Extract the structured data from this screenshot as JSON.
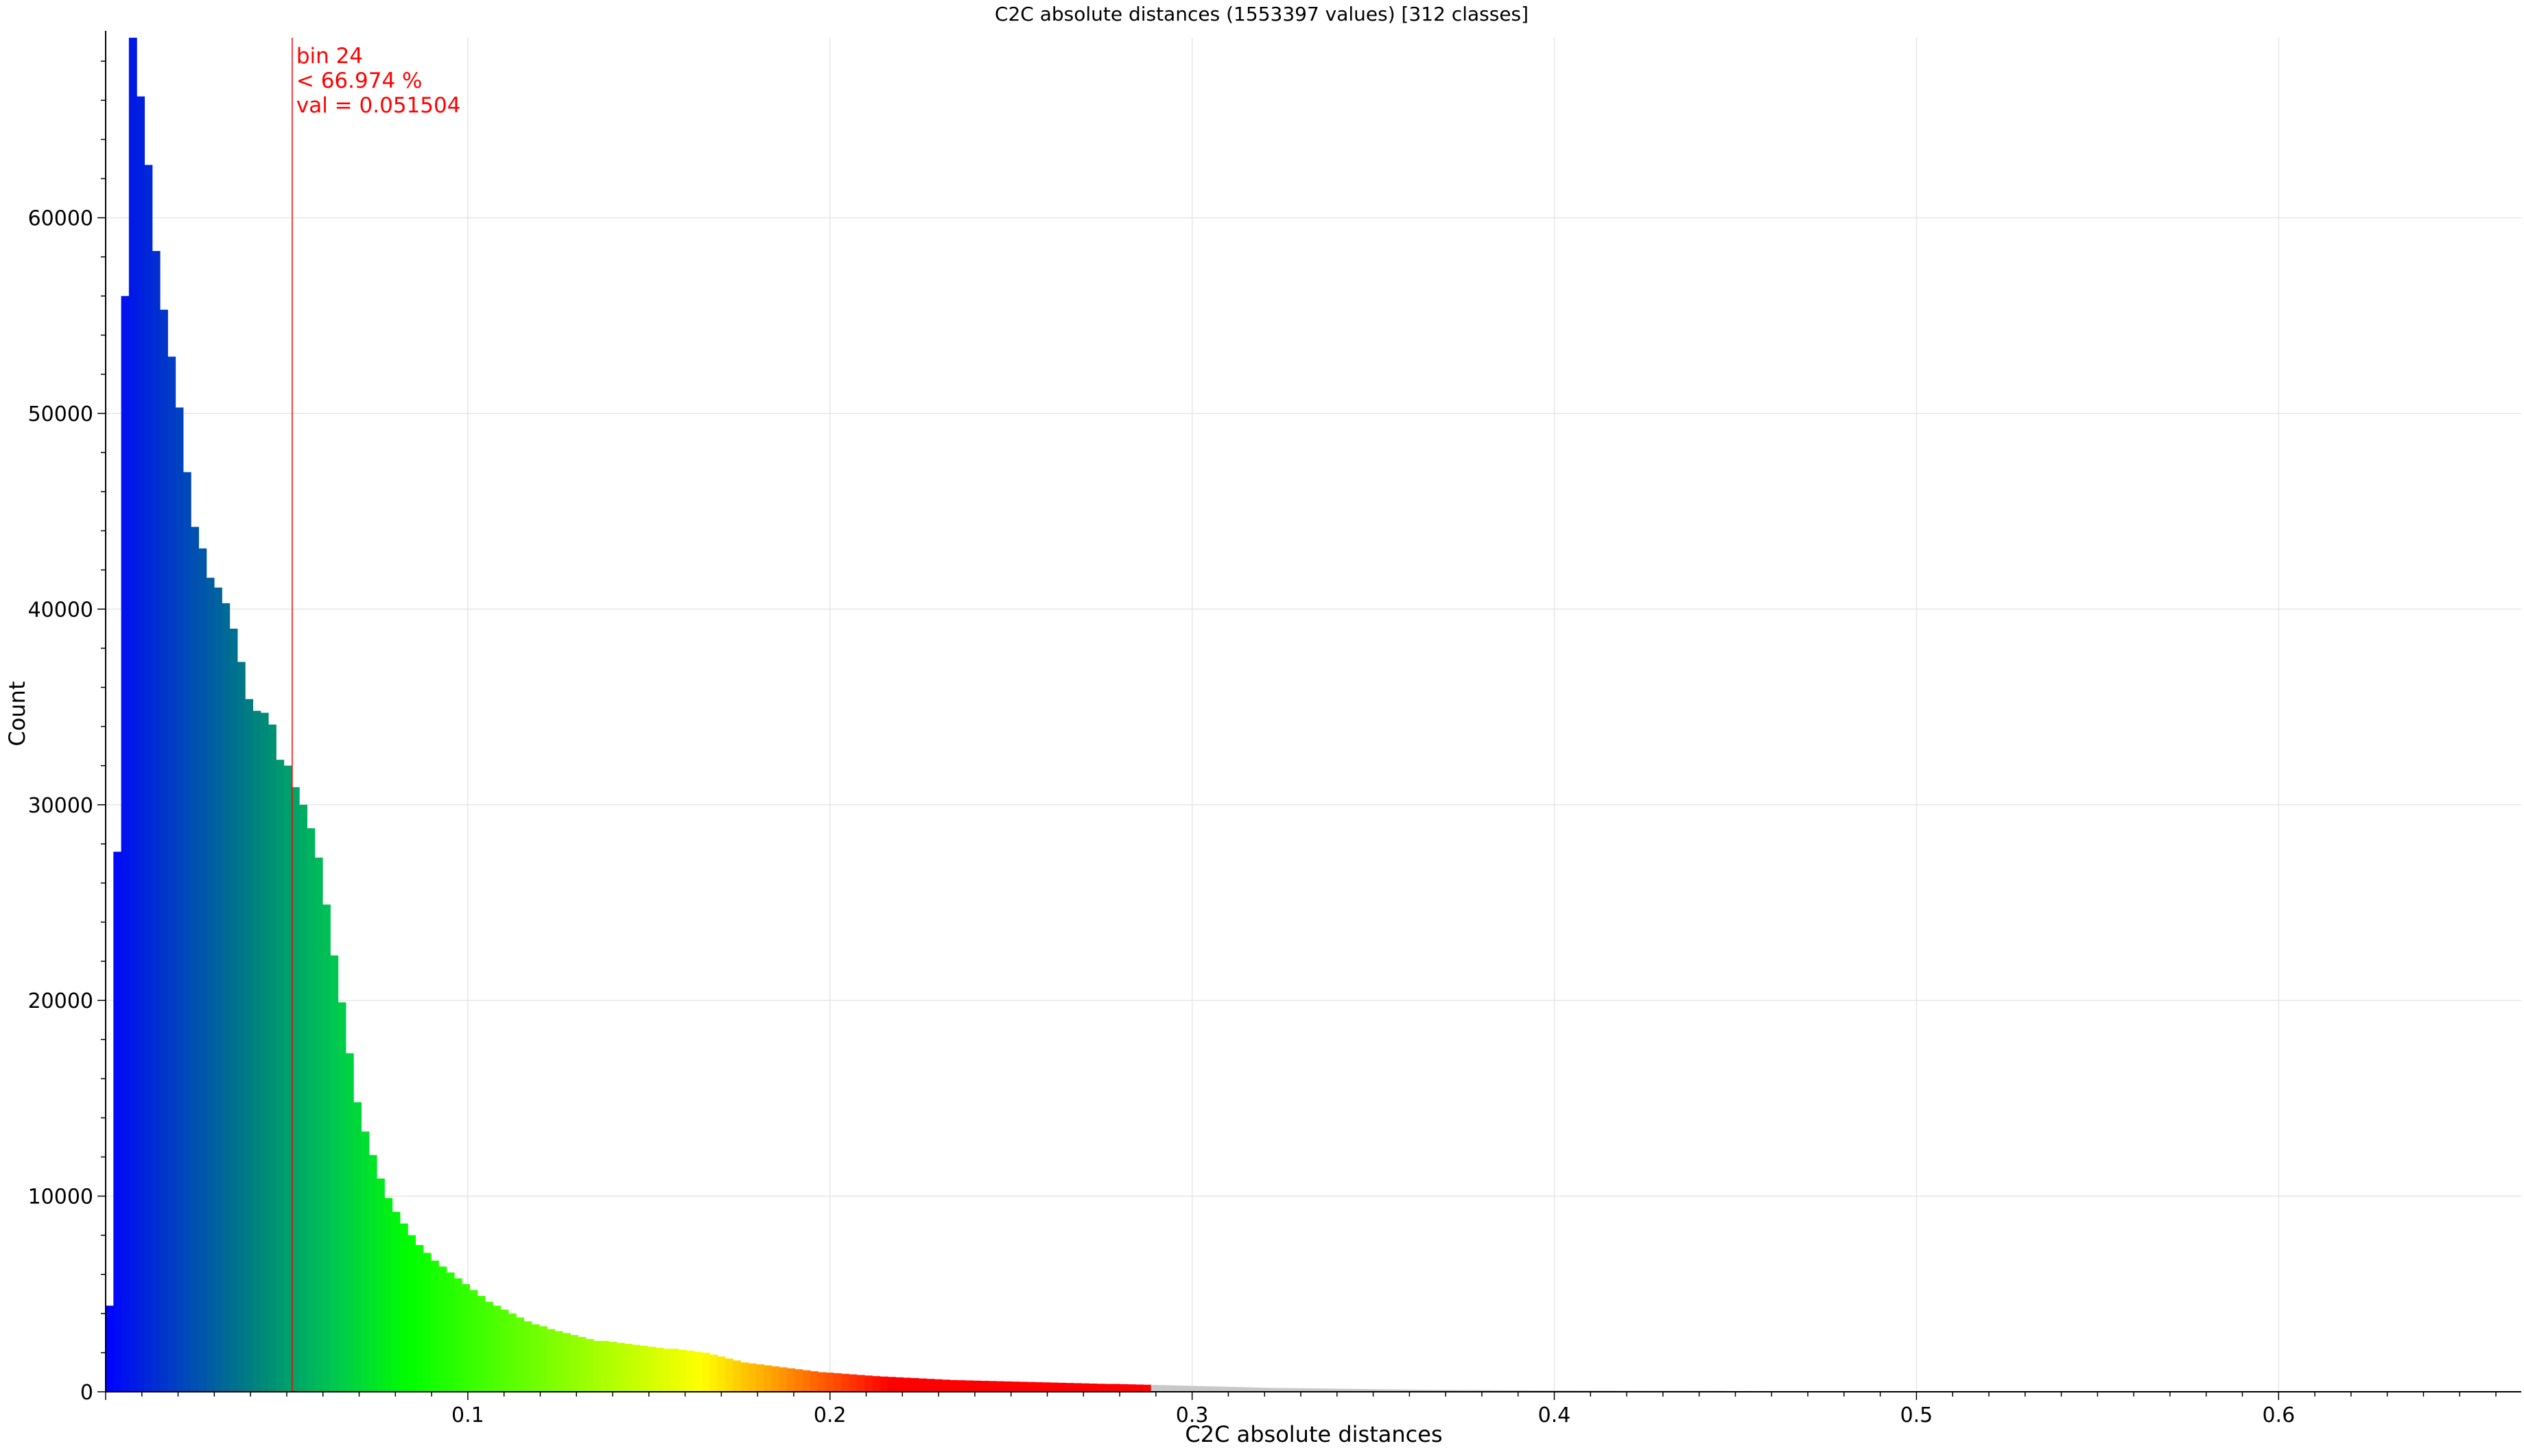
{
  "chart_data": {
    "type": "bar",
    "title": "C2C absolute distances (1553397 values)  [312 classes]",
    "xlabel": "C2C absolute distances",
    "ylabel": "Count",
    "xlim": [
      0,
      0.667
    ],
    "ylim": [
      0,
      69200
    ],
    "grid": true,
    "x_ticks": [
      0.1,
      0.2,
      0.3,
      0.4,
      0.5,
      0.6
    ],
    "x_tick_labels": [
      "0.1",
      "0.2",
      "0.3",
      "0.4",
      "0.5",
      "0.6"
    ],
    "y_ticks": [
      0,
      10000,
      20000,
      30000,
      40000,
      50000,
      60000
    ],
    "y_tick_labels": [
      "0",
      "10000",
      "20000",
      "30000",
      "40000",
      "50000",
      "60000"
    ],
    "bin_width": 0.002138,
    "color_range_max": 0.2885,
    "above_range_color": "#c8c8c8",
    "colormap_stops": [
      {
        "t": 0.0,
        "color": "#0000ff"
      },
      {
        "t": 0.06,
        "color": "#0039c8"
      },
      {
        "t": 0.14,
        "color": "#008080"
      },
      {
        "t": 0.22,
        "color": "#00c850"
      },
      {
        "t": 0.29,
        "color": "#00ff00"
      },
      {
        "t": 0.43,
        "color": "#80ff00"
      },
      {
        "t": 0.57,
        "color": "#ffff00"
      },
      {
        "t": 0.64,
        "color": "#ff9f00"
      },
      {
        "t": 0.75,
        "color": "#ff0000"
      },
      {
        "t": 1.0,
        "color": "#ff0000"
      }
    ],
    "values": [
      4400,
      27600,
      56000,
      69200,
      66200,
      62700,
      58300,
      55300,
      52900,
      50300,
      47000,
      44200,
      43100,
      41600,
      41100,
      40300,
      39000,
      37300,
      35400,
      34800,
      34700,
      34100,
      32300,
      32000,
      30900,
      30000,
      28800,
      27300,
      24900,
      22300,
      19900,
      17300,
      14800,
      13300,
      12100,
      10900,
      9900,
      9200,
      8600,
      8000,
      7500,
      7100,
      6700,
      6400,
      6100,
      5800,
      5500,
      5200,
      4900,
      4600,
      4400,
      4200,
      4000,
      3800,
      3600,
      3450,
      3350,
      3200,
      3100,
      3000,
      2900,
      2800,
      2700,
      2600,
      2600,
      2550,
      2500,
      2450,
      2400,
      2350,
      2300,
      2250,
      2200,
      2200,
      2150,
      2100,
      2050,
      2000,
      1900,
      1800,
      1700,
      1600,
      1500,
      1450,
      1400,
      1350,
      1300,
      1250,
      1200,
      1150,
      1100,
      1050,
      1000,
      980,
      950,
      920,
      890,
      860,
      830,
      800,
      780,
      760,
      740,
      720,
      700,
      680,
      660,
      640,
      620,
      600,
      590,
      580,
      570,
      560,
      550,
      540,
      530,
      520,
      510,
      500,
      490,
      480,
      470,
      460,
      450,
      440,
      430,
      420,
      410,
      400,
      400,
      390,
      380,
      370,
      360,
      350,
      340,
      330,
      320,
      310,
      300,
      290,
      280,
      270,
      260,
      250,
      240,
      230,
      220,
      210,
      200,
      195,
      190,
      185,
      180,
      175,
      170,
      165,
      160,
      155,
      150,
      145,
      140,
      135,
      130,
      125,
      120,
      115,
      110,
      105,
      100,
      98,
      96,
      94,
      92,
      90,
      88,
      86,
      84,
      82,
      80,
      78,
      76,
      74,
      72,
      70,
      68,
      66,
      64,
      62,
      60,
      59,
      58,
      57,
      56,
      55,
      54,
      53,
      52,
      51,
      50,
      49,
      48,
      47,
      46,
      45,
      44,
      43,
      42,
      41,
      40,
      39,
      38,
      37,
      36,
      35,
      34,
      33,
      32,
      31,
      30,
      30,
      29,
      29,
      28,
      28,
      27,
      27,
      26,
      26,
      25,
      25,
      24,
      24,
      23,
      23,
      22,
      22,
      21,
      21,
      20,
      20,
      19,
      19,
      18,
      18,
      17,
      17,
      16,
      16,
      15,
      15,
      14,
      14,
      13,
      13,
      12,
      12,
      11,
      11,
      10,
      10,
      10,
      9,
      9,
      9,
      8,
      8,
      8,
      7,
      7,
      7,
      6,
      6,
      6,
      5,
      5,
      5,
      5,
      4,
      4,
      4,
      4,
      3,
      3,
      3,
      3,
      3,
      2,
      2,
      2,
      2,
      2,
      2,
      1,
      1,
      1,
      1,
      1,
      1,
      1,
      1,
      1,
      1,
      1,
      1,
      1,
      1,
      1,
      1,
      1,
      1
    ],
    "marker": {
      "x": 0.051504,
      "color": "#ff0000",
      "lines": [
        "bin 24",
        "< 66.974 %",
        "val = 0.051504"
      ]
    }
  }
}
